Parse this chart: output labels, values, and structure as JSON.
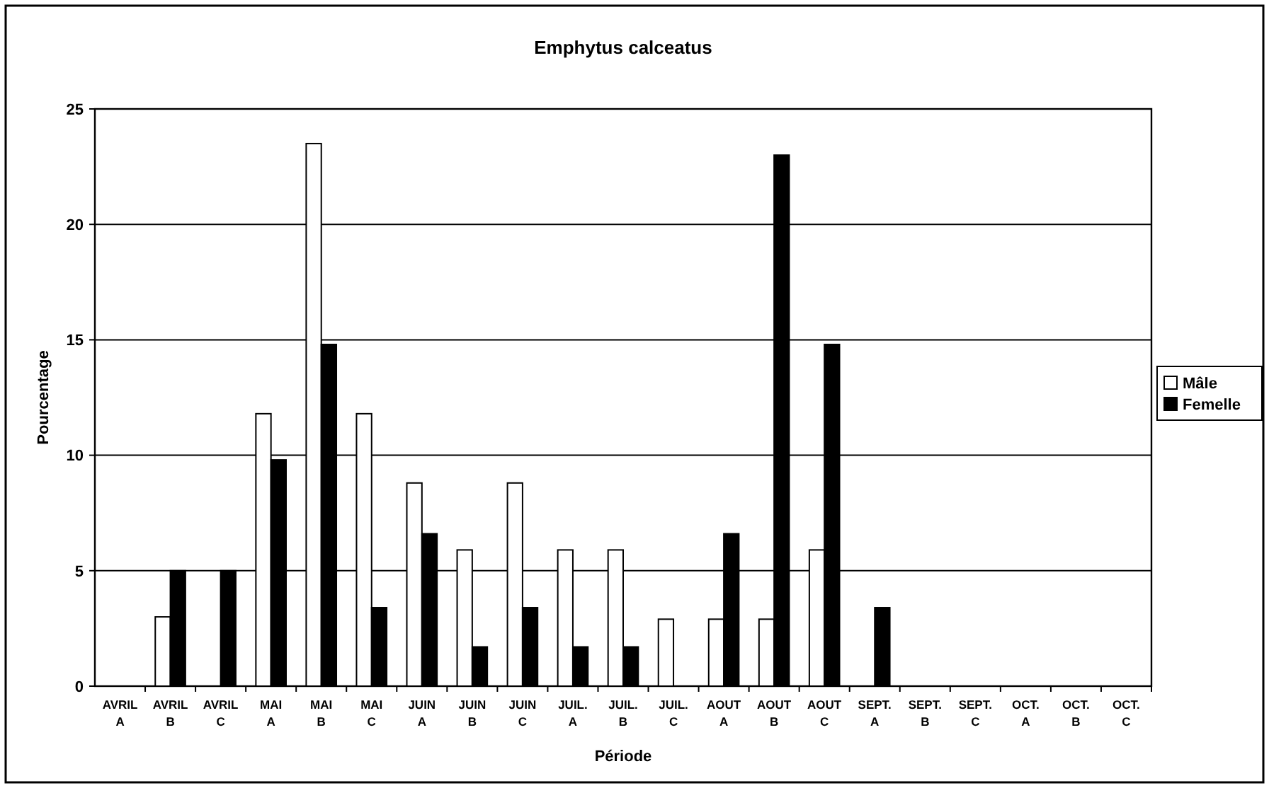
{
  "chart_data": {
    "type": "bar",
    "title": "Emphytus calceatus",
    "xlabel": "Période",
    "ylabel": "Pourcentage",
    "categories": [
      "AVRIL\nA",
      "AVRIL\nB",
      "AVRIL\nC",
      "MAI\nA",
      "MAI\nB",
      "MAI\nC",
      "JUIN\nA",
      "JUIN\nB",
      "JUIN\nC",
      "JUIL.\nA",
      "JUIL.\nB",
      "JUIL.\nC",
      "AOUT\nA",
      "AOUT\nB",
      "AOUT\nC",
      "SEPT.\nA",
      "SEPT.\nB",
      "SEPT.\nC",
      "OCT.\nA",
      "OCT.\nB",
      "OCT.\nC"
    ],
    "series": [
      {
        "name": "Mâle",
        "color": "#ffffff",
        "values": [
          0,
          3,
          0,
          11.8,
          23.5,
          11.8,
          8.8,
          5.9,
          8.8,
          5.9,
          5.9,
          2.9,
          2.9,
          2.9,
          5.9,
          0,
          0,
          0,
          0,
          0,
          0
        ]
      },
      {
        "name": "Femelle",
        "color": "#000000",
        "values": [
          0,
          5,
          5,
          9.8,
          14.8,
          3.4,
          6.6,
          1.7,
          3.4,
          1.7,
          1.7,
          0,
          6.6,
          23,
          14.8,
          3.4,
          0,
          0,
          0,
          0,
          0
        ]
      }
    ],
    "ylim": [
      0,
      25
    ],
    "yticks": [
      0,
      5,
      10,
      15,
      20,
      25
    ],
    "grid": "y",
    "legend": "right"
  }
}
